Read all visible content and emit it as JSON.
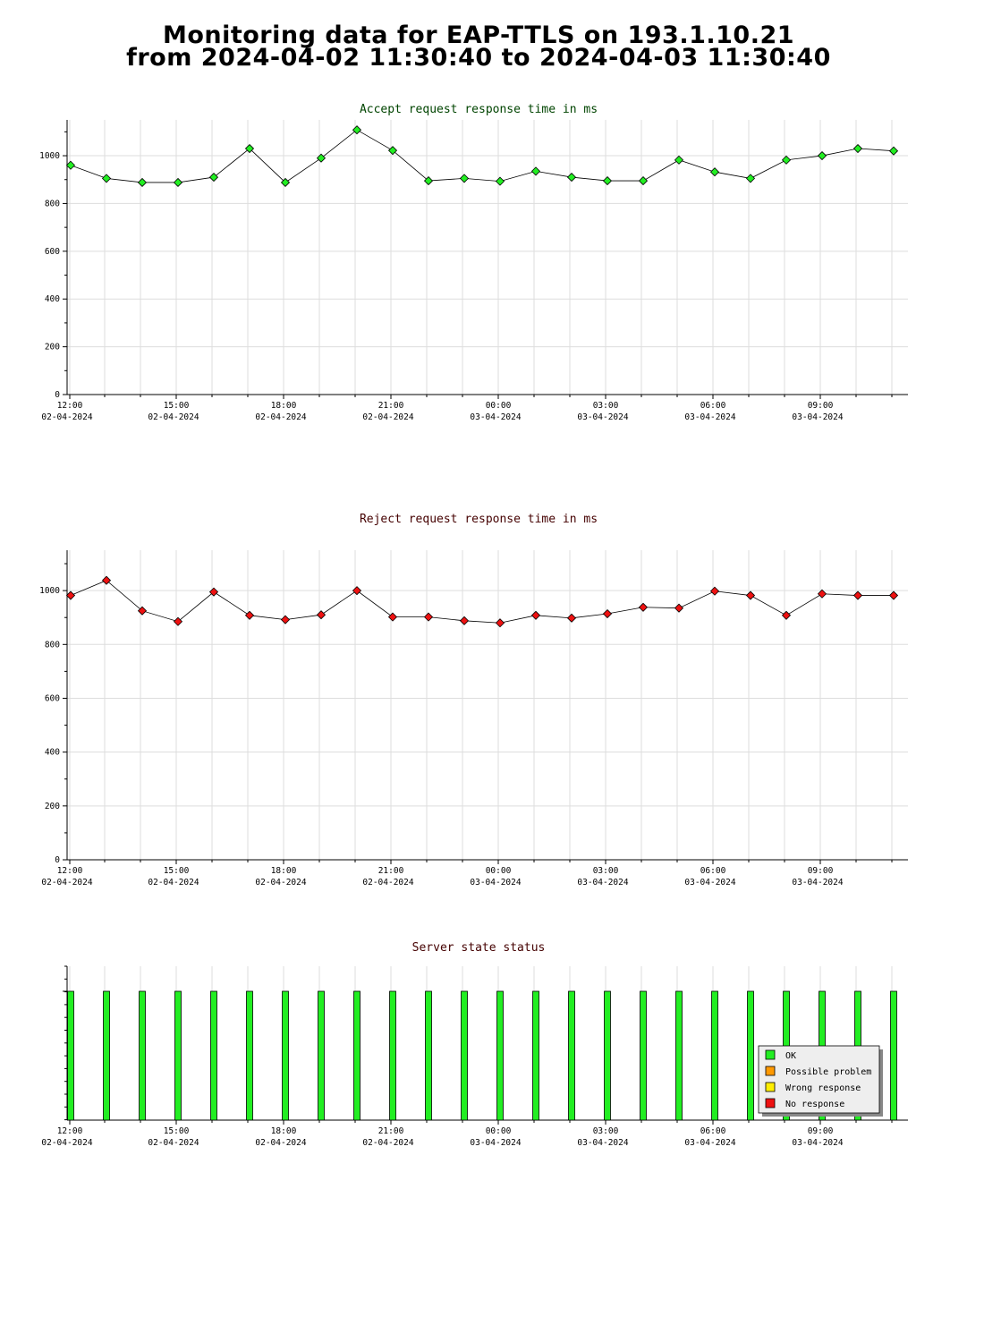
{
  "page": {
    "title_line1": "Monitoring data for EAP-TTLS on 193.1.10.21",
    "title_line2": "from 2024-04-02 11:30:40 to 2024-04-03 11:30:40"
  },
  "colors": {
    "accept_marker": "#22ee22",
    "reject_marker": "#ee1111",
    "accept_title": "#004400",
    "reject_title": "#440000",
    "grid": "#dddddd",
    "ok": "#22ee22",
    "possible_problem": "#ff9900",
    "wrong_response": "#ffee00",
    "no_response": "#ee1111"
  },
  "time_axis": [
    {
      "time": "12:00",
      "date": "02-04-2024"
    },
    {
      "time": "15:00",
      "date": "02-04-2024"
    },
    {
      "time": "18:00",
      "date": "02-04-2024"
    },
    {
      "time": "21:00",
      "date": "02-04-2024"
    },
    {
      "time": "00:00",
      "date": "03-04-2024"
    },
    {
      "time": "03:00",
      "date": "03-04-2024"
    },
    {
      "time": "06:00",
      "date": "03-04-2024"
    },
    {
      "time": "09:00",
      "date": "03-04-2024"
    }
  ],
  "chart_data": [
    {
      "type": "line",
      "title": "Accept request response time in ms",
      "ylim": [
        0,
        1150
      ],
      "yticks": [
        0,
        200,
        400,
        600,
        800,
        1000
      ],
      "grid": true,
      "x": [
        "2024-04-02 11:50",
        "2024-04-02 12:50",
        "2024-04-02 13:50",
        "2024-04-02 14:50",
        "2024-04-02 15:50",
        "2024-04-02 16:50",
        "2024-04-02 17:50",
        "2024-04-02 18:50",
        "2024-04-02 19:50",
        "2024-04-02 20:50",
        "2024-04-02 21:50",
        "2024-04-02 22:50",
        "2024-04-02 23:50",
        "2024-04-03 00:50",
        "2024-04-03 01:50",
        "2024-04-03 02:50",
        "2024-04-03 03:50",
        "2024-04-03 04:50",
        "2024-04-03 05:50",
        "2024-04-03 06:50",
        "2024-04-03 07:50",
        "2024-04-03 08:50",
        "2024-04-03 09:50",
        "2024-04-03 10:50"
      ],
      "values": [
        960,
        905,
        888,
        888,
        910,
        1030,
        888,
        990,
        1108,
        1022,
        895,
        905,
        893,
        935,
        910,
        895,
        895,
        982,
        932,
        905,
        982,
        1000,
        1030,
        1020
      ]
    },
    {
      "type": "line",
      "title": "Reject request response time in ms",
      "ylim": [
        0,
        1150
      ],
      "yticks": [
        0,
        200,
        400,
        600,
        800,
        1000
      ],
      "grid": true,
      "x": [
        "2024-04-02 11:50",
        "2024-04-02 12:50",
        "2024-04-02 13:50",
        "2024-04-02 14:50",
        "2024-04-02 15:50",
        "2024-04-02 16:50",
        "2024-04-02 17:50",
        "2024-04-02 18:50",
        "2024-04-02 19:50",
        "2024-04-02 20:50",
        "2024-04-02 21:50",
        "2024-04-02 22:50",
        "2024-04-02 23:50",
        "2024-04-03 00:50",
        "2024-04-03 01:50",
        "2024-04-03 02:50",
        "2024-04-03 03:50",
        "2024-04-03 04:50",
        "2024-04-03 05:50",
        "2024-04-03 06:50",
        "2024-04-03 07:50",
        "2024-04-03 08:50",
        "2024-04-03 09:50",
        "2024-04-03 10:50"
      ],
      "values": [
        982,
        1038,
        925,
        885,
        995,
        908,
        892,
        910,
        1000,
        902,
        902,
        888,
        880,
        908,
        898,
        914,
        938,
        935,
        998,
        982,
        908,
        988,
        982,
        982
      ]
    },
    {
      "type": "bar",
      "title": "Server state status",
      "x": [
        "2024-04-02 11:50",
        "2024-04-02 12:50",
        "2024-04-02 13:50",
        "2024-04-02 14:50",
        "2024-04-02 15:50",
        "2024-04-02 16:50",
        "2024-04-02 17:50",
        "2024-04-02 18:50",
        "2024-04-02 19:50",
        "2024-04-02 20:50",
        "2024-04-02 21:50",
        "2024-04-02 22:50",
        "2024-04-02 23:50",
        "2024-04-03 00:50",
        "2024-04-03 01:50",
        "2024-04-03 02:50",
        "2024-04-03 03:50",
        "2024-04-03 04:50",
        "2024-04-03 05:50",
        "2024-04-03 06:50",
        "2024-04-03 07:50",
        "2024-04-03 08:50",
        "2024-04-03 09:50",
        "2024-04-03 10:50"
      ],
      "states": [
        "OK",
        "OK",
        "OK",
        "OK",
        "OK",
        "OK",
        "OK",
        "OK",
        "OK",
        "OK",
        "OK",
        "OK",
        "OK",
        "OK",
        "OK",
        "OK",
        "OK",
        "OK",
        "OK",
        "OK",
        "OK",
        "OK",
        "OK",
        "OK"
      ],
      "legend": [
        "OK",
        "Possible problem",
        "Wrong response",
        "No response"
      ],
      "legend_position": "bottom-right"
    }
  ]
}
